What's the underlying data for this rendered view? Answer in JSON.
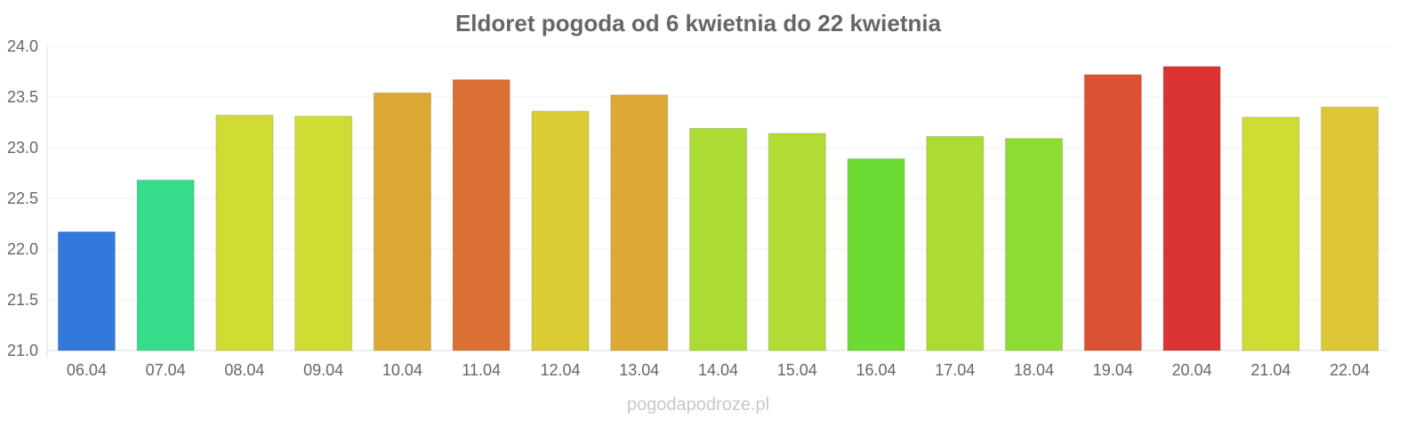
{
  "chart_data": {
    "type": "bar",
    "title": "Eldoret pogoda od 6 kwietnia do 22 kwietnia",
    "xlabel": "",
    "ylabel": "",
    "ylim": [
      21.0,
      24.0
    ],
    "yticks": [
      "21.0",
      "21.5",
      "22.0",
      "22.5",
      "23.0",
      "23.5",
      "24.0"
    ],
    "grid": true,
    "categories": [
      "06.04",
      "07.04",
      "08.04",
      "09.04",
      "10.04",
      "11.04",
      "12.04",
      "13.04",
      "14.04",
      "15.04",
      "16.04",
      "17.04",
      "18.04",
      "19.04",
      "20.04",
      "21.04",
      "22.04"
    ],
    "values": [
      22.17,
      22.68,
      23.32,
      23.31,
      23.54,
      23.67,
      23.36,
      23.52,
      23.19,
      23.14,
      22.89,
      23.11,
      23.09,
      23.72,
      23.8,
      23.3,
      23.4
    ],
    "colors": [
      "#3478dc",
      "#36dc8a",
      "#d0dc34",
      "#d0dc34",
      "#dca834",
      "#dc7034",
      "#dccc34",
      "#dcaa34",
      "#acdc34",
      "#b2dc34",
      "#6cdc34",
      "#acdc34",
      "#8cdc34",
      "#dc5034",
      "#dc3434",
      "#d0dc34",
      "#dcc834"
    ]
  },
  "watermark": "pogodapodroze.pl"
}
